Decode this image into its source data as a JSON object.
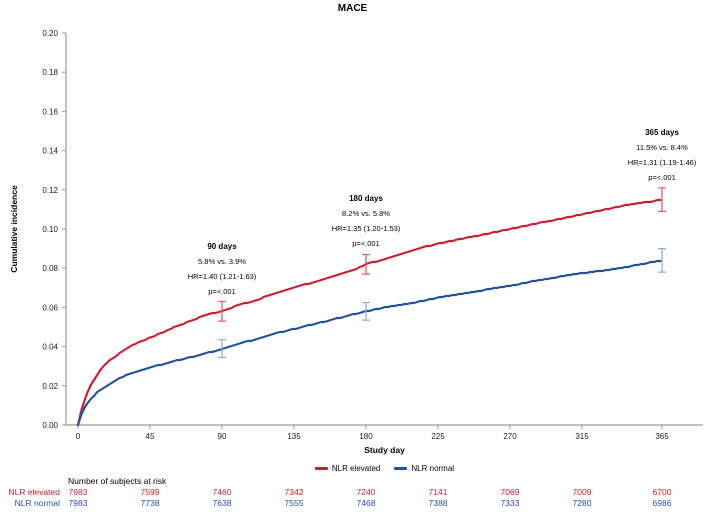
{
  "chart_data": {
    "type": "line",
    "title": "MACE",
    "xlabel": "Study day",
    "ylabel": "Cumulative incidence",
    "xlim": [
      0,
      380
    ],
    "ylim": [
      0,
      0.2
    ],
    "xticks": [
      0,
      45,
      90,
      135,
      180,
      225,
      270,
      315,
      365
    ],
    "ytick_labels": [
      "0.00",
      "0.02",
      "0.04",
      "0.06",
      "0.08",
      "0.10",
      "0.12",
      "0.14",
      "0.16",
      "0.18",
      "0.20"
    ],
    "grid": false,
    "legend_position": "bottom",
    "series": [
      {
        "name": "NLR elevated",
        "color": "#C8202F",
        "error_color": "#E0606C",
        "points": [
          [
            0,
            0
          ],
          [
            1,
            0.004
          ],
          [
            2,
            0.007
          ],
          [
            3,
            0.01
          ],
          [
            5,
            0.015
          ],
          [
            7,
            0.019
          ],
          [
            10,
            0.023
          ],
          [
            13,
            0.027
          ],
          [
            16,
            0.03
          ],
          [
            20,
            0.033
          ],
          [
            25,
            0.036
          ],
          [
            30,
            0.039
          ],
          [
            36,
            0.0415
          ],
          [
            42,
            0.0435
          ],
          [
            48,
            0.0455
          ],
          [
            55,
            0.048
          ],
          [
            62,
            0.0505
          ],
          [
            70,
            0.053
          ],
          [
            78,
            0.0555
          ],
          [
            84,
            0.057
          ],
          [
            90,
            0.058
          ],
          [
            98,
            0.0605
          ],
          [
            106,
            0.0625
          ],
          [
            114,
            0.0645
          ],
          [
            122,
            0.067
          ],
          [
            130,
            0.069
          ],
          [
            138,
            0.071
          ],
          [
            146,
            0.0725
          ],
          [
            154,
            0.0745
          ],
          [
            162,
            0.0765
          ],
          [
            170,
            0.0785
          ],
          [
            175,
            0.08
          ],
          [
            180,
            0.082
          ],
          [
            195,
            0.0855
          ],
          [
            210,
            0.0895
          ],
          [
            225,
            0.0925
          ],
          [
            240,
            0.095
          ],
          [
            255,
            0.0975
          ],
          [
            270,
            0.1
          ],
          [
            285,
            0.1025
          ],
          [
            300,
            0.105
          ],
          [
            315,
            0.1075
          ],
          [
            330,
            0.11
          ],
          [
            345,
            0.1125
          ],
          [
            358,
            0.114
          ],
          [
            365,
            0.115
          ]
        ]
      },
      {
        "name": "NLR normal",
        "color": "#24519C",
        "error_color": "#8FAFD9",
        "points": [
          [
            0,
            0
          ],
          [
            1,
            0.003
          ],
          [
            2,
            0.005
          ],
          [
            3,
            0.007
          ],
          [
            5,
            0.01
          ],
          [
            7,
            0.0125
          ],
          [
            10,
            0.015
          ],
          [
            13,
            0.0175
          ],
          [
            16,
            0.019
          ],
          [
            20,
            0.021
          ],
          [
            25,
            0.0235
          ],
          [
            30,
            0.0255
          ],
          [
            36,
            0.027
          ],
          [
            42,
            0.0285
          ],
          [
            48,
            0.03
          ],
          [
            55,
            0.0315
          ],
          [
            62,
            0.033
          ],
          [
            70,
            0.0345
          ],
          [
            78,
            0.036
          ],
          [
            84,
            0.0375
          ],
          [
            90,
            0.039
          ],
          [
            100,
            0.0415
          ],
          [
            110,
            0.0435
          ],
          [
            120,
            0.046
          ],
          [
            130,
            0.048
          ],
          [
            140,
            0.05
          ],
          [
            150,
            0.052
          ],
          [
            160,
            0.054
          ],
          [
            170,
            0.056
          ],
          [
            180,
            0.058
          ],
          [
            195,
            0.0605
          ],
          [
            210,
            0.0625
          ],
          [
            225,
            0.065
          ],
          [
            240,
            0.067
          ],
          [
            255,
            0.069
          ],
          [
            270,
            0.071
          ],
          [
            285,
            0.0735
          ],
          [
            300,
            0.0755
          ],
          [
            315,
            0.0775
          ],
          [
            330,
            0.079
          ],
          [
            345,
            0.081
          ],
          [
            365,
            0.084
          ]
        ]
      }
    ],
    "error_bars": [
      {
        "day": 90,
        "series": 0,
        "center": 0.058,
        "low": 0.053,
        "high": 0.063
      },
      {
        "day": 90,
        "series": 1,
        "center": 0.039,
        "low": 0.0345,
        "high": 0.0435
      },
      {
        "day": 180,
        "series": 0,
        "center": 0.082,
        "low": 0.077,
        "high": 0.087
      },
      {
        "day": 180,
        "series": 1,
        "center": 0.058,
        "low": 0.0535,
        "high": 0.0625
      },
      {
        "day": 365,
        "series": 0,
        "center": 0.115,
        "low": 0.109,
        "high": 0.121
      },
      {
        "day": 365,
        "series": 1,
        "center": 0.084,
        "low": 0.078,
        "high": 0.09
      }
    ],
    "annotations": [
      {
        "day": 90,
        "lines": [
          "90 days",
          "5.8% vs. 3.9%",
          "HR=1.40 (1.21-1.63)",
          "p=<.001"
        ]
      },
      {
        "day": 180,
        "lines": [
          "180 days",
          "8.2% vs. 5.8%",
          "HR=1.35 (1.20-1.53)",
          "p=<.001"
        ]
      },
      {
        "day": 365,
        "lines": [
          "365 days",
          "11.5% vs. 8.4%",
          "HR=1.31 (1.19-1.46)",
          "p=<.001"
        ]
      }
    ]
  },
  "risk_table": {
    "header": "Number of subjects at risk",
    "days": [
      0,
      45,
      90,
      135,
      180,
      225,
      270,
      315,
      365
    ],
    "rows": [
      {
        "label": "NLR elevated",
        "color": "#C8202F",
        "values": [
          7983,
          7599,
          7460,
          7342,
          7240,
          7141,
          7069,
          7009,
          6700
        ]
      },
      {
        "label": "NLR normal",
        "color": "#24519C",
        "values": [
          7983,
          7738,
          7638,
          7555,
          7468,
          7388,
          7333,
          7280,
          6986
        ]
      }
    ]
  },
  "colors": {
    "axis": "#9A9A9A",
    "tick_text": "#1a1a1a"
  }
}
